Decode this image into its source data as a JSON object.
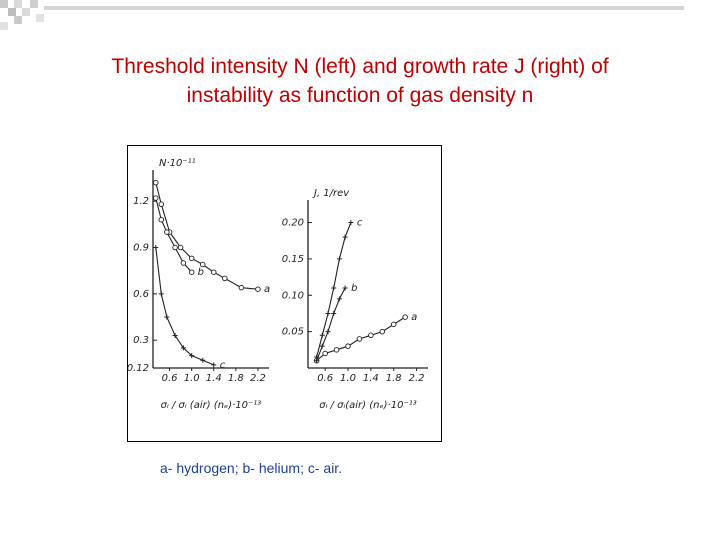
{
  "slide": {
    "title_line1": "Threshold intensity N (left)  and growth rate J (right) of",
    "title_line2": "instability as function of gas density n",
    "caption": "a- hydrogen; b- helium; c- air."
  },
  "colors": {
    "title": "#c00000",
    "caption": "#1f3f8f",
    "decor": "#c9c9c9"
  },
  "chart_data": [
    {
      "type": "line",
      "ylabel": "N·10⁻¹¹",
      "xlabel": "σᵢ / σᵢ (air)   (nₑ)·10⁻¹³",
      "yticks": [
        "1.2",
        "0.9",
        "0.6",
        "0.3",
        "0.12"
      ],
      "xticks": [
        "0.6",
        "1.0",
        "1.4",
        "1.8",
        "2.2"
      ],
      "series": [
        {
          "name": "a",
          "points": [
            [
              0.35,
              1.32
            ],
            [
              0.45,
              1.18
            ],
            [
              0.6,
              1.0
            ],
            [
              0.8,
              0.9
            ],
            [
              1.0,
              0.83
            ],
            [
              1.2,
              0.79
            ],
            [
              1.4,
              0.74
            ],
            [
              1.6,
              0.7
            ],
            [
              1.9,
              0.64
            ],
            [
              2.2,
              0.63
            ]
          ]
        },
        {
          "name": "b",
          "points": [
            [
              0.35,
              1.22
            ],
            [
              0.45,
              1.08
            ],
            [
              0.55,
              1.0
            ],
            [
              0.7,
              0.9
            ],
            [
              0.85,
              0.8
            ],
            [
              1.0,
              0.74
            ]
          ]
        },
        {
          "name": "c",
          "points": [
            [
              0.35,
              0.9
            ],
            [
              0.45,
              0.6
            ],
            [
              0.55,
              0.45
            ],
            [
              0.7,
              0.33
            ],
            [
              0.85,
              0.25
            ],
            [
              1.0,
              0.2
            ],
            [
              1.2,
              0.17
            ],
            [
              1.4,
              0.14
            ]
          ]
        }
      ]
    },
    {
      "type": "line",
      "ylabel": "J, 1/rev",
      "xlabel": "σᵢ / σᵢ(air)   (nₑ)·10⁻¹³",
      "yticks": [
        "0.20",
        "0.15",
        "0.10",
        "0.05"
      ],
      "xticks": [
        "0.6",
        "1.0",
        "1.4",
        "1.8",
        "2.2"
      ],
      "series": [
        {
          "name": "a",
          "points": [
            [
              0.45,
              0.01
            ],
            [
              0.6,
              0.02
            ],
            [
              0.8,
              0.025
            ],
            [
              1.0,
              0.03
            ],
            [
              1.2,
              0.04
            ],
            [
              1.4,
              0.045
            ],
            [
              1.6,
              0.05
            ],
            [
              1.8,
              0.06
            ],
            [
              2.0,
              0.07
            ]
          ]
        },
        {
          "name": "b",
          "points": [
            [
              0.45,
              0.01
            ],
            [
              0.55,
              0.03
            ],
            [
              0.65,
              0.05
            ],
            [
              0.75,
              0.075
            ],
            [
              0.85,
              0.095
            ],
            [
              0.95,
              0.11
            ]
          ]
        },
        {
          "name": "c",
          "points": [
            [
              0.45,
              0.015
            ],
            [
              0.55,
              0.045
            ],
            [
              0.65,
              0.075
            ],
            [
              0.75,
              0.11
            ],
            [
              0.85,
              0.15
            ],
            [
              0.95,
              0.18
            ],
            [
              1.05,
              0.2
            ]
          ]
        }
      ]
    }
  ]
}
